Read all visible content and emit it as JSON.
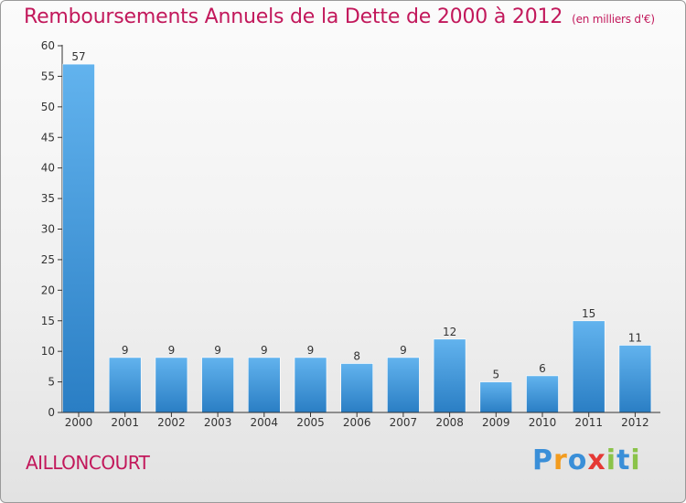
{
  "title": "Remboursements Annuels de la Dette de 2000 à 2012",
  "subtitle": "(en milliers d'€)",
  "commune": "AILLONCOURT",
  "logo": {
    "text": "Proxiti",
    "letters": [
      {
        "ch": "P",
        "color": "#3a8fd8"
      },
      {
        "ch": "r",
        "color": "#f39c1f"
      },
      {
        "ch": "o",
        "color": "#3a8fd8"
      },
      {
        "ch": "x",
        "color": "#e53935"
      },
      {
        "ch": "i",
        "color": "#8bc34a"
      },
      {
        "ch": "t",
        "color": "#3a8fd8"
      },
      {
        "ch": "i",
        "color": "#8bc34a"
      }
    ]
  },
  "colors": {
    "title": "#c2185b",
    "bar_light": "#5fb0ec",
    "bar_dark": "#2a7fc6",
    "axis": "#333333",
    "grid": "#d0d0d0"
  },
  "chart_data": {
    "type": "bar",
    "title": "Remboursements Annuels de la Dette de 2000 à 2012",
    "xlabel": "",
    "ylabel": "",
    "ylim": [
      0,
      60
    ],
    "yticks": [
      0,
      5,
      10,
      15,
      20,
      25,
      30,
      35,
      40,
      45,
      50,
      55,
      60
    ],
    "categories": [
      "2000",
      "2001",
      "2002",
      "2003",
      "2004",
      "2005",
      "2006",
      "2007",
      "2008",
      "2009",
      "2010",
      "2011",
      "2012"
    ],
    "values": [
      57,
      9,
      9,
      9,
      9,
      9,
      8,
      9,
      12,
      5,
      6,
      15,
      11
    ],
    "grid": false
  }
}
